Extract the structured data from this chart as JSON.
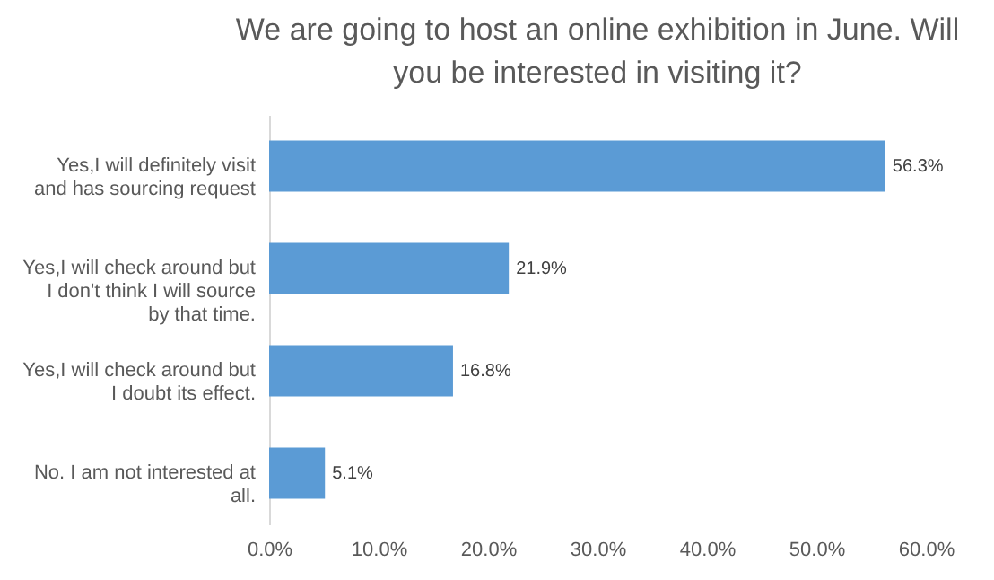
{
  "chart_data": {
    "type": "bar",
    "orientation": "horizontal",
    "title": "We are going to host an online exhibition in June. Will you be interested in visiting it?",
    "categories": [
      "Yes,I will definitely visit and has sourcing request",
      "Yes,I will check around but I don't think I will source by that time.",
      "Yes,I will check around but I doubt its effect.",
      "No. I am not interested at all."
    ],
    "values": [
      56.3,
      21.9,
      16.8,
      5.1
    ],
    "value_labels": [
      "56.3%",
      "21.9%",
      "16.8%",
      "5.1%"
    ],
    "color": "#5b9bd5",
    "xlim": [
      0,
      60
    ],
    "xticks": [
      {
        "value": 0,
        "label": "0.0%"
      },
      {
        "value": 10,
        "label": "10.0%"
      },
      {
        "value": 20,
        "label": "20.0%"
      },
      {
        "value": 30,
        "label": "30.0%"
      },
      {
        "value": 40,
        "label": "40.0%"
      },
      {
        "value": 50,
        "label": "50.0%"
      },
      {
        "value": 60,
        "label": "60.0%"
      }
    ],
    "grid": false
  }
}
